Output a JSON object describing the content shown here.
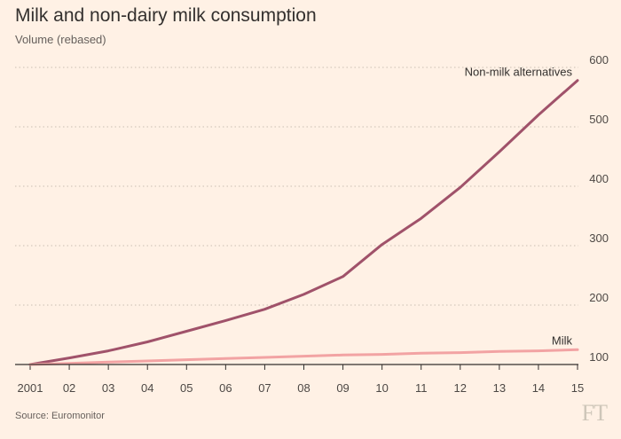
{
  "header": {
    "title": "Milk and non-dairy milk consumption",
    "subtitle": "Volume (rebased)"
  },
  "footer": {
    "source": "Source: Euromonitor",
    "logo_text": "FT"
  },
  "colors": {
    "background": "#fff1e5",
    "non_milk_line": "#a0526a",
    "milk_line": "#f2a3a3",
    "grid": "#c9bfb3",
    "axis": "#33302e"
  },
  "chart_data": {
    "type": "line",
    "x": [
      "2001",
      "02",
      "03",
      "04",
      "05",
      "06",
      "07",
      "08",
      "09",
      "10",
      "11",
      "12",
      "13",
      "14",
      "15"
    ],
    "ylim": [
      100,
      600
    ],
    "yticks": [
      "100",
      "200",
      "300",
      "400",
      "500",
      "600"
    ],
    "ytick_values": [
      100,
      200,
      300,
      400,
      500,
      600
    ],
    "grid": true,
    "series": [
      {
        "name": "Non-milk alternatives",
        "values": [
          100,
          111,
          123,
          138,
          156,
          174,
          193,
          218,
          248,
          302,
          346,
          398,
          458,
          520,
          578
        ]
      },
      {
        "name": "Milk",
        "values": [
          100,
          102,
          104,
          106,
          108,
          110,
          112,
          114,
          116,
          117,
          119,
          120,
          122,
          123,
          125
        ]
      }
    ]
  }
}
